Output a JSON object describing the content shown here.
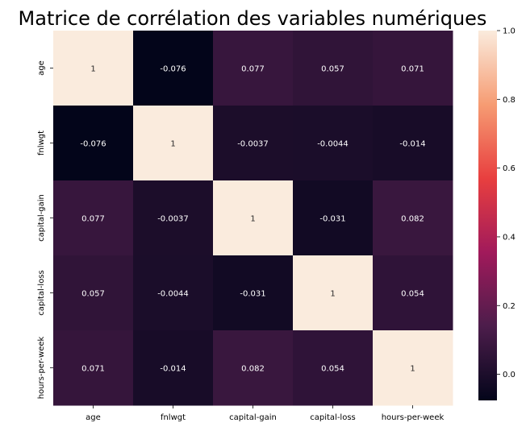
{
  "chart_data": {
    "type": "heatmap",
    "title": "Matrice de corrélation des variables numériques",
    "row_labels": [
      "age",
      "fnlwgt",
      "capital-gain",
      "capital-loss",
      "hours-per-week"
    ],
    "col_labels": [
      "age",
      "fnlwgt",
      "capital-gain",
      "capital-loss",
      "hours-per-week"
    ],
    "values": [
      [
        1,
        -0.076,
        0.077,
        0.057,
        0.071
      ],
      [
        -0.076,
        1,
        -0.0037,
        -0.0044,
        -0.014
      ],
      [
        0.077,
        -0.0037,
        1,
        -0.031,
        0.082
      ],
      [
        0.057,
        -0.0044,
        -0.031,
        1,
        0.054
      ],
      [
        0.071,
        -0.014,
        0.082,
        0.054,
        1
      ]
    ],
    "cell_labels": [
      [
        "1",
        "-0.076",
        "0.077",
        "0.057",
        "0.071"
      ],
      [
        "-0.076",
        "1",
        "-0.0037",
        "-0.0044",
        "-0.014"
      ],
      [
        "0.077",
        "-0.0037",
        "1",
        "-0.031",
        "0.082"
      ],
      [
        "0.057",
        "-0.0044",
        "-0.031",
        "1",
        "0.054"
      ],
      [
        "0.071",
        "-0.014",
        "0.082",
        "0.054",
        "1"
      ]
    ],
    "colorbar": {
      "min": -0.076,
      "max": 1,
      "ticks": [
        0.0,
        0.2,
        0.4,
        0.6,
        0.8,
        1.0
      ],
      "tick_labels": [
        "0.0",
        "0.2",
        "0.4",
        "0.6",
        "0.8",
        "1.0"
      ]
    },
    "colormap": "rocket",
    "colormap_stops": [
      "#03051a",
      "#4c1d4b",
      "#a11a5b",
      "#e83f3f",
      "#f69c73",
      "#faebdd"
    ]
  }
}
